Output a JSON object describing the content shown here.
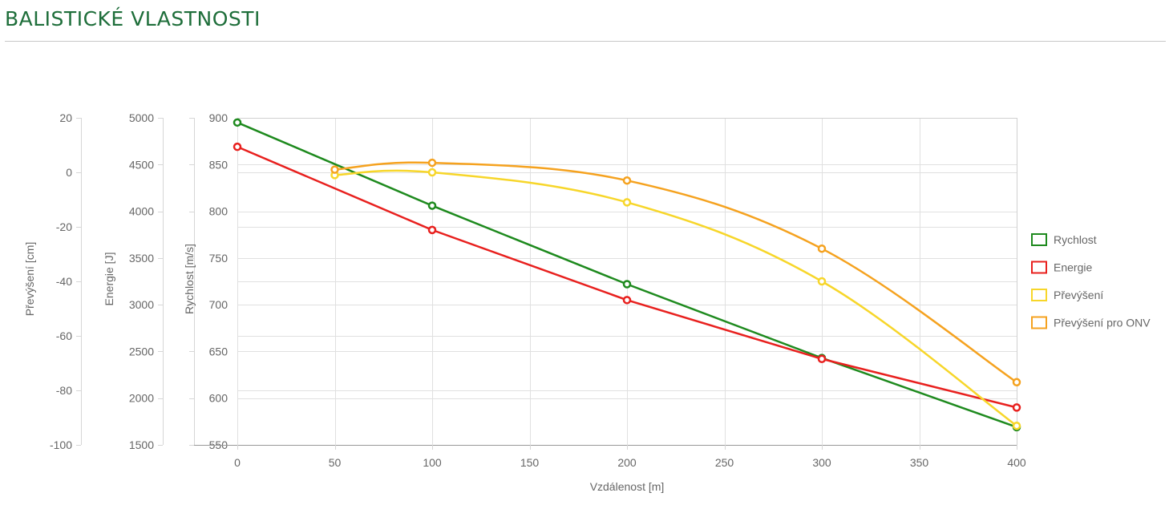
{
  "page": {
    "title": "BALISTICKÉ VLASTNOSTI"
  },
  "chart_data": {
    "type": "line",
    "title": "",
    "xlabel": "Vzdálenost [m]",
    "xlim": [
      0,
      400
    ],
    "x_ticks": [
      0,
      50,
      100,
      150,
      200,
      250,
      300,
      350,
      400
    ],
    "grid": true,
    "legend_position": "right",
    "axes": {
      "velocity": {
        "label": "Rychlost [m/s]",
        "range": [
          550,
          900
        ],
        "ticks": [
          550,
          600,
          650,
          700,
          750,
          800,
          850,
          900
        ]
      },
      "energy": {
        "label": "Energie [J]",
        "range": [
          1500,
          5000
        ],
        "ticks": [
          1500,
          2000,
          2500,
          3000,
          3500,
          4000,
          4500,
          5000
        ]
      },
      "drop": {
        "label": "Převýšení [cm]",
        "range": [
          -100,
          20
        ],
        "ticks": [
          -100,
          -80,
          -60,
          -40,
          -20,
          0,
          20
        ]
      }
    },
    "series": [
      {
        "name": "Rychlost",
        "axis": "velocity",
        "color": "#1e8a1e",
        "smooth": false,
        "points": [
          [
            0,
            895
          ],
          [
            100,
            806
          ],
          [
            200,
            722
          ],
          [
            300,
            643
          ],
          [
            400,
            569
          ]
        ]
      },
      {
        "name": "Energie",
        "axis": "energy",
        "color": "#e8201e",
        "smooth": false,
        "points": [
          [
            0,
            4690
          ],
          [
            100,
            3800
          ],
          [
            200,
            3050
          ],
          [
            300,
            2420
          ],
          [
            400,
            1900
          ]
        ]
      },
      {
        "name": "Převýšení",
        "axis": "drop",
        "color": "#f7d62a",
        "smooth": true,
        "points": [
          [
            50,
            -1
          ],
          [
            100,
            0
          ],
          [
            200,
            -11
          ],
          [
            300,
            -40
          ],
          [
            400,
            -93
          ]
        ]
      },
      {
        "name": "Převýšení pro ONV",
        "axis": "drop",
        "color": "#f5a21f",
        "smooth": true,
        "points": [
          [
            50,
            1
          ],
          [
            100,
            3.5
          ],
          [
            200,
            -3
          ],
          [
            300,
            -28
          ],
          [
            400,
            -77
          ]
        ]
      }
    ]
  }
}
